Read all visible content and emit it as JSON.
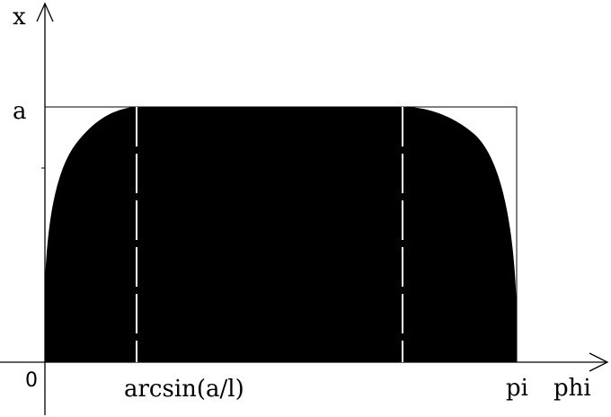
{
  "labels": {
    "y_axis": "x",
    "x_axis": "phi",
    "a": "a",
    "origin": "0",
    "arcsin": "arcsin(a/l)",
    "pi": "pi"
  },
  "colors": {
    "fill": "#000000",
    "line": "#000000",
    "background": "#ffffff",
    "divider": "#ffffff"
  }
}
